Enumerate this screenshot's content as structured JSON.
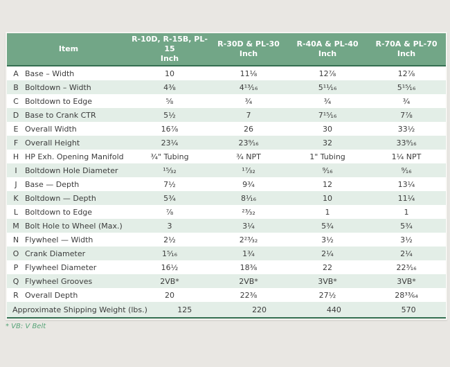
{
  "table": {
    "header": {
      "item_label": "Item",
      "columns": [
        {
          "line1": "R-10D, R-15B, PL-15",
          "line2": "Inch"
        },
        {
          "line1": "R-30D & PL-30",
          "line2": "Inch"
        },
        {
          "line1": "R-40A & PL-40",
          "line2": "Inch"
        },
        {
          "line1": "R-70A & PL-70",
          "line2": "Inch"
        }
      ]
    },
    "rows": [
      {
        "letter": "A",
        "item": "Base – Width",
        "values": [
          "10",
          "11⅛",
          "12⅞",
          "12⅞"
        ]
      },
      {
        "letter": "B",
        "item": "Boltdown – Width",
        "values": [
          "4⅜",
          "4¹³⁄₁₆",
          "5¹¹⁄₁₆",
          "5¹⁵⁄₁₆"
        ]
      },
      {
        "letter": "C",
        "item": "Boltdown to Edge",
        "values": [
          "⅝",
          "¾",
          "¾",
          "¾"
        ]
      },
      {
        "letter": "D",
        "item": "Base to Crank CTR",
        "values": [
          "5½",
          "7",
          "7¹⁵⁄₁₆",
          "7⅞"
        ]
      },
      {
        "letter": "E",
        "item": "Overall Width",
        "values": [
          "16⅞",
          "26",
          "30",
          "33½"
        ]
      },
      {
        "letter": "F",
        "item": "Overall Height",
        "values": [
          "23¼",
          "23⁹⁄₁₆",
          "32",
          "33⁹⁄₁₆"
        ]
      },
      {
        "letter": "H",
        "item": "HP Exh. Opening Manifold",
        "values": [
          "¾\" Tubing",
          "¾ NPT",
          "1\" Tubing",
          "1¼ NPT"
        ]
      },
      {
        "letter": "I",
        "item": "Boltdown Hole Diameter",
        "values": [
          "¹⁵⁄₃₂",
          "¹⁷⁄₃₂",
          "⁹⁄₁₆",
          "⁹⁄₁₆"
        ]
      },
      {
        "letter": "J",
        "item": "Base — Depth",
        "values": [
          "7½",
          "9¾",
          "12",
          "13¼"
        ]
      },
      {
        "letter": "K",
        "item": "Boltdown — Depth",
        "values": [
          "5¾",
          "8¹⁄₁₆",
          "10",
          "11¼"
        ]
      },
      {
        "letter": "L",
        "item": "Boltdown to Edge",
        "values": [
          "⅞",
          "²³⁄₃₂",
          "1",
          "1"
        ]
      },
      {
        "letter": "M",
        "item": "Bolt Hole to Wheel (Max.)",
        "values": [
          "3",
          "3¼",
          "5¾",
          "5¾"
        ]
      },
      {
        "letter": "N",
        "item": "Flywheel — Width",
        "values": [
          "2½",
          "2²³⁄₃₂",
          "3½",
          "3½"
        ]
      },
      {
        "letter": "O",
        "item": "Crank Diameter",
        "values": [
          "1⁵⁄₁₆",
          "1¾",
          "2¼",
          "2¼"
        ]
      },
      {
        "letter": "P",
        "item": "Flywheel Diameter",
        "values": [
          "16½",
          "18⅜",
          "22",
          "22³⁄₁₆"
        ]
      },
      {
        "letter": "Q",
        "item": "Flywheel Grooves",
        "values": [
          "2VB*",
          "2VB*",
          "3VB*",
          "3VB*"
        ]
      },
      {
        "letter": "R",
        "item": "Overall Depth",
        "values": [
          "20",
          "22⅜",
          "27½",
          "28³³⁄₆₄"
        ]
      }
    ],
    "shipping_row": {
      "label": "Approximate Shipping Weight (lbs.)",
      "values": [
        "125",
        "220",
        "440",
        "570"
      ]
    },
    "footnote": "* VB: V Belt",
    "colors": {
      "header_green": "#72a687",
      "stripe_green": "#e3eee7",
      "rule_green": "#346f51",
      "footnote_green": "#55a377"
    }
  }
}
